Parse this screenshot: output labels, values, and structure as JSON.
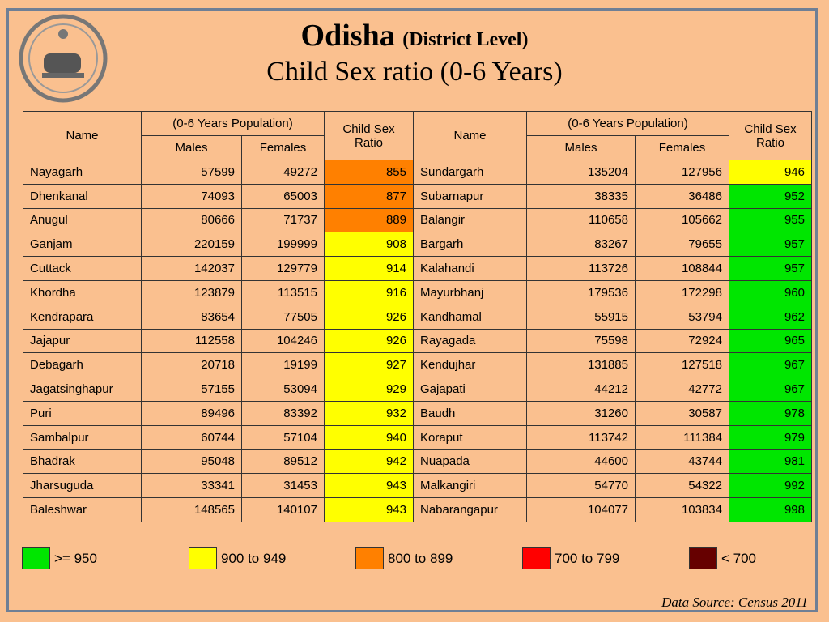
{
  "header": {
    "title": "Odisha",
    "title_note": "(District Level)",
    "subtitle": "Child Sex ratio (0-6 Years)"
  },
  "table": {
    "columns": {
      "name": "Name",
      "population": "(0-6 Years Population)",
      "males": "Males",
      "females": "Females",
      "ratio": "Child Sex Ratio"
    },
    "rows": [
      {
        "left": {
          "name": "Nayagarh",
          "males": 57599,
          "females": 49272,
          "ratio": 855,
          "color": "#ff8000"
        },
        "right": {
          "name": "Sundargarh",
          "males": 135204,
          "females": 127956,
          "ratio": 946,
          "color": "#ffff00"
        }
      },
      {
        "left": {
          "name": "Dhenkanal",
          "males": 74093,
          "females": 65003,
          "ratio": 877,
          "color": "#ff8000"
        },
        "right": {
          "name": "Subarnapur",
          "males": 38335,
          "females": 36486,
          "ratio": 952,
          "color": "#00e600"
        }
      },
      {
        "left": {
          "name": "Anugul",
          "males": 80666,
          "females": 71737,
          "ratio": 889,
          "color": "#ff8000"
        },
        "right": {
          "name": "Balangir",
          "males": 110658,
          "females": 105662,
          "ratio": 955,
          "color": "#00e600"
        }
      },
      {
        "left": {
          "name": "Ganjam",
          "males": 220159,
          "females": 199999,
          "ratio": 908,
          "color": "#ffff00"
        },
        "right": {
          "name": "Bargarh",
          "males": 83267,
          "females": 79655,
          "ratio": 957,
          "color": "#00e600"
        }
      },
      {
        "left": {
          "name": "Cuttack",
          "males": 142037,
          "females": 129779,
          "ratio": 914,
          "color": "#ffff00"
        },
        "right": {
          "name": "Kalahandi",
          "males": 113726,
          "females": 108844,
          "ratio": 957,
          "color": "#00e600"
        }
      },
      {
        "left": {
          "name": "Khordha",
          "males": 123879,
          "females": 113515,
          "ratio": 916,
          "color": "#ffff00"
        },
        "right": {
          "name": "Mayurbhanj",
          "males": 179536,
          "females": 172298,
          "ratio": 960,
          "color": "#00e600"
        }
      },
      {
        "left": {
          "name": "Kendrapara",
          "males": 83654,
          "females": 77505,
          "ratio": 926,
          "color": "#ffff00"
        },
        "right": {
          "name": "Kandhamal",
          "males": 55915,
          "females": 53794,
          "ratio": 962,
          "color": "#00e600"
        }
      },
      {
        "left": {
          "name": "Jajapur",
          "males": 112558,
          "females": 104246,
          "ratio": 926,
          "color": "#ffff00"
        },
        "right": {
          "name": "Rayagada",
          "males": 75598,
          "females": 72924,
          "ratio": 965,
          "color": "#00e600"
        }
      },
      {
        "left": {
          "name": "Debagarh",
          "males": 20718,
          "females": 19199,
          "ratio": 927,
          "color": "#ffff00"
        },
        "right": {
          "name": "Kendujhar",
          "males": 131885,
          "females": 127518,
          "ratio": 967,
          "color": "#00e600"
        }
      },
      {
        "left": {
          "name": "Jagatsinghapur",
          "males": 57155,
          "females": 53094,
          "ratio": 929,
          "color": "#ffff00"
        },
        "right": {
          "name": "Gajapati",
          "males": 44212,
          "females": 42772,
          "ratio": 967,
          "color": "#00e600"
        }
      },
      {
        "left": {
          "name": "Puri",
          "males": 89496,
          "females": 83392,
          "ratio": 932,
          "color": "#ffff00"
        },
        "right": {
          "name": "Baudh",
          "males": 31260,
          "females": 30587,
          "ratio": 978,
          "color": "#00e600"
        }
      },
      {
        "left": {
          "name": "Sambalpur",
          "males": 60744,
          "females": 57104,
          "ratio": 940,
          "color": "#ffff00"
        },
        "right": {
          "name": "Koraput",
          "males": 113742,
          "females": 111384,
          "ratio": 979,
          "color": "#00e600"
        }
      },
      {
        "left": {
          "name": "Bhadrak",
          "males": 95048,
          "females": 89512,
          "ratio": 942,
          "color": "#ffff00"
        },
        "right": {
          "name": "Nuapada",
          "males": 44600,
          "females": 43744,
          "ratio": 981,
          "color": "#00e600"
        }
      },
      {
        "left": {
          "name": "Jharsuguda",
          "males": 33341,
          "females": 31453,
          "ratio": 943,
          "color": "#ffff00"
        },
        "right": {
          "name": "Malkangiri",
          "males": 54770,
          "females": 54322,
          "ratio": 992,
          "color": "#00e600"
        }
      },
      {
        "left": {
          "name": "Baleshwar",
          "males": 148565,
          "females": 140107,
          "ratio": 943,
          "color": "#ffff00"
        },
        "right": {
          "name": "Nabarangapur",
          "males": 104077,
          "females": 103834,
          "ratio": 998,
          "color": "#00e600"
        }
      }
    ]
  },
  "legend": [
    {
      "color": "#00e600",
      "label": ">= 950"
    },
    {
      "color": "#ffff00",
      "label": "900 to 949"
    },
    {
      "color": "#ff8000",
      "label": "800 to 899"
    },
    {
      "color": "#ff0000",
      "label": "700 to 799"
    },
    {
      "color": "#660000",
      "label": "<  700"
    }
  ],
  "source": "Data Source: Census 2011"
}
